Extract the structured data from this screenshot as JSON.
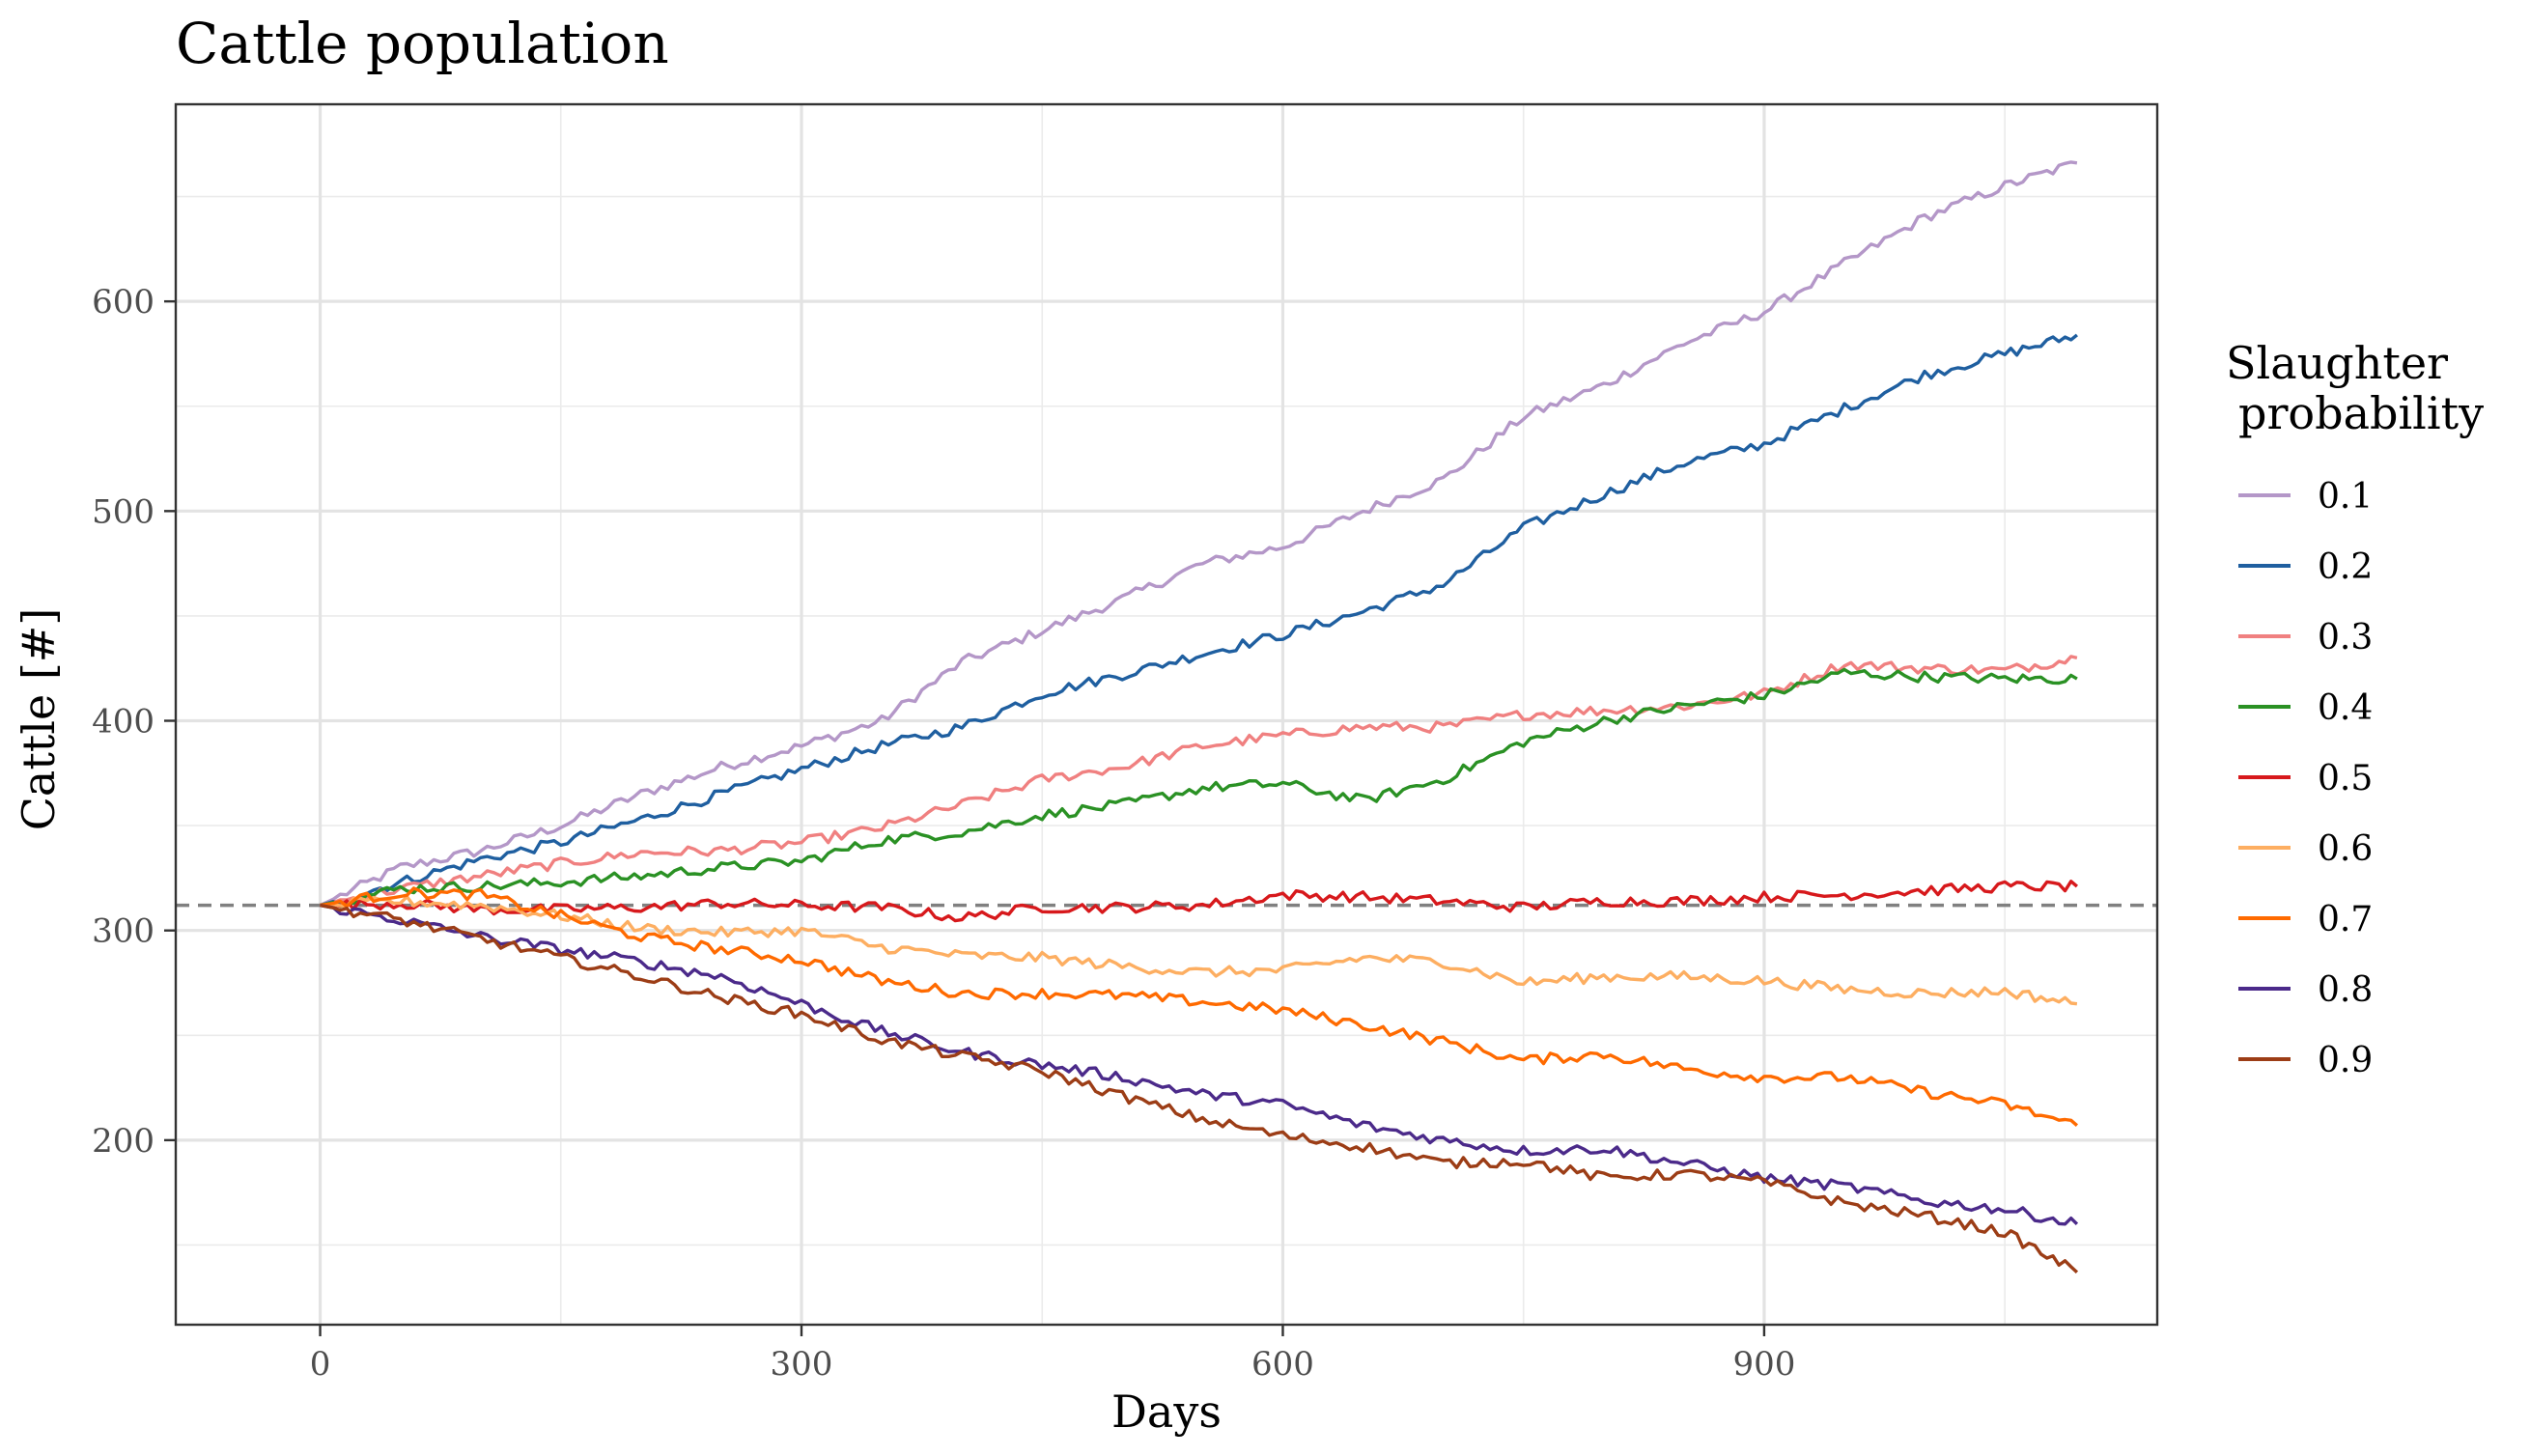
{
  "chart_data": {
    "type": "line",
    "title": "Cattle population",
    "xlabel": "Days",
    "ylabel": "Cattle [#]",
    "xlim": [
      -90,
      1145
    ],
    "ylim": [
      112,
      694
    ],
    "x_ticks": [
      "0",
      "300",
      "600",
      "900"
    ],
    "y_ticks": [
      "200",
      "300",
      "400",
      "500",
      "600"
    ],
    "grid": true,
    "legend": {
      "title_line1": "Slaughter",
      "title_line2": "probability",
      "position": "right"
    },
    "reference_line": {
      "y": 312,
      "style": "dashed",
      "color": "#808080"
    },
    "x": [
      0,
      50,
      100,
      150,
      200,
      250,
      300,
      350,
      400,
      450,
      500,
      550,
      600,
      650,
      700,
      750,
      800,
      850,
      900,
      950,
      1000,
      1050,
      1095
    ],
    "series": [
      {
        "name": "0.1",
        "color": "#b497c8",
        "values": [
          312,
          330,
          338,
          350,
          365,
          378,
          388,
          400,
          428,
          443,
          458,
          475,
          483,
          500,
          515,
          545,
          560,
          580,
          595,
          618,
          640,
          655,
          666
        ]
      },
      {
        "name": "0.2",
        "color": "#1f5fa0",
        "values": [
          312,
          323,
          334,
          342,
          353,
          365,
          377,
          388,
          397,
          413,
          422,
          432,
          441,
          452,
          465,
          492,
          508,
          523,
          532,
          549,
          565,
          575,
          584
        ]
      },
      {
        "name": "0.3",
        "color": "#f08080",
        "values": [
          312,
          320,
          326,
          332,
          337,
          338,
          342,
          349,
          360,
          372,
          378,
          388,
          393,
          397,
          397,
          403,
          405,
          407,
          413,
          427,
          425,
          424,
          430
        ]
      },
      {
        "name": "0.4",
        "color": "#2a9124",
        "values": [
          312,
          320,
          321,
          323,
          326,
          330,
          333,
          343,
          347,
          355,
          360,
          368,
          370,
          362,
          372,
          390,
          400,
          407,
          412,
          423,
          421,
          420,
          420
        ]
      },
      {
        "name": "0.5",
        "color": "#d7191c",
        "values": [
          312,
          313,
          310,
          310,
          311,
          313,
          312,
          311,
          306,
          311,
          311,
          312,
          317,
          316,
          314,
          311,
          314,
          314,
          316,
          317,
          319,
          321,
          321
        ]
      },
      {
        "name": "0.6",
        "color": "#fdae61",
        "values": [
          312,
          314,
          312,
          307,
          301,
          299,
          300,
          292,
          288,
          287,
          283,
          280,
          281,
          287,
          285,
          275,
          278,
          278,
          276,
          272,
          270,
          271,
          265
        ]
      },
      {
        "name": "0.7",
        "color": "#ff6a00",
        "values": [
          312,
          318,
          317,
          307,
          297,
          291,
          286,
          276,
          270,
          270,
          269,
          266,
          262,
          255,
          247,
          238,
          241,
          234,
          230,
          230,
          223,
          217,
          207
        ]
      },
      {
        "name": "0.8",
        "color": "#4b2a8a",
        "values": [
          312,
          305,
          297,
          291,
          285,
          278,
          265,
          252,
          242,
          236,
          230,
          222,
          217,
          207,
          200,
          195,
          196,
          189,
          182,
          178,
          171,
          167,
          160
        ]
      },
      {
        "name": "0.9",
        "color": "#9c3d16",
        "values": [
          312,
          305,
          296,
          287,
          278,
          268,
          260,
          248,
          240,
          233,
          221,
          210,
          202,
          197,
          189,
          190,
          182,
          184,
          180,
          170,
          164,
          156,
          137
        ]
      }
    ]
  }
}
